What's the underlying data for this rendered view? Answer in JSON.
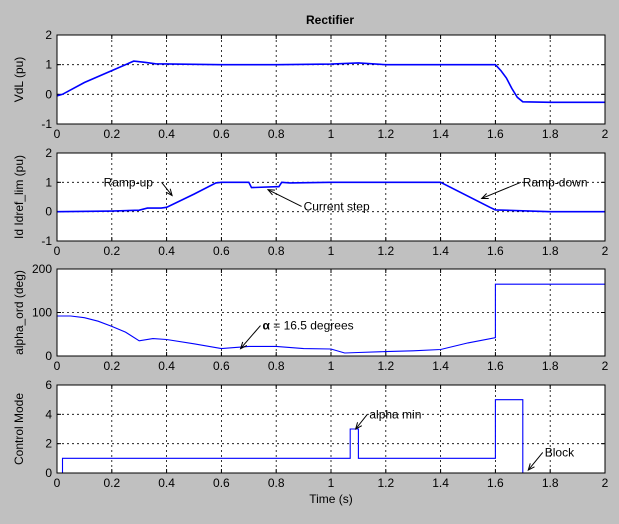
{
  "chart_data": [
    {
      "type": "line",
      "title": "Rectifier",
      "ylabel": "VdL (pu)",
      "xlabel": "",
      "xlim": [
        0,
        2
      ],
      "ylim": [
        -1,
        2
      ],
      "xticks": [
        "0",
        "0.2",
        "0.4",
        "0.6",
        "0.8",
        "1",
        "1.2",
        "1.4",
        "1.6",
        "1.8",
        "2"
      ],
      "yticks": [
        "-1",
        "0",
        "1",
        "2"
      ],
      "grid": true,
      "line_color": "#0000ff",
      "series": [
        {
          "x": [
            0,
            0.02,
            0.1,
            0.2,
            0.28,
            0.32,
            0.36,
            0.6,
            0.8,
            1.0,
            1.1,
            1.2,
            1.4,
            1.6,
            1.62,
            1.64,
            1.66,
            1.68,
            1.7,
            1.8,
            2.0
          ],
          "y": [
            -0.05,
            0.0,
            0.4,
            0.8,
            1.12,
            1.08,
            1.03,
            1.0,
            1.0,
            1.02,
            1.06,
            1.0,
            1.0,
            1.0,
            0.8,
            0.55,
            0.2,
            -0.1,
            -0.25,
            -0.27,
            -0.27
          ]
        }
      ],
      "annotations": []
    },
    {
      "type": "line",
      "title": "",
      "ylabel": "Id Idref_lim (pu)",
      "xlabel": "",
      "xlim": [
        0,
        2
      ],
      "ylim": [
        -1,
        2
      ],
      "xticks": [
        "0",
        "0.2",
        "0.4",
        "0.6",
        "0.8",
        "1",
        "1.2",
        "1.4",
        "1.6",
        "1.8",
        "2"
      ],
      "yticks": [
        "-1",
        "0",
        "1",
        "2"
      ],
      "grid": true,
      "line_color": "#0000ff",
      "series": [
        {
          "x": [
            0,
            0.2,
            0.3,
            0.33,
            0.38,
            0.4,
            0.5,
            0.58,
            0.6,
            0.7,
            0.71,
            0.8,
            0.81,
            0.82,
            0.85,
            1.0,
            1.4,
            1.58,
            1.6,
            1.7,
            1.8,
            2.0
          ],
          "y": [
            0.0,
            0.02,
            0.05,
            0.12,
            0.12,
            0.15,
            0.6,
            0.98,
            1.0,
            1.0,
            0.82,
            0.85,
            0.85,
            1.0,
            0.98,
            1.0,
            1.0,
            0.15,
            0.06,
            0.03,
            0.0,
            0.0
          ]
        }
      ],
      "annotations": [
        {
          "text": "Ramp-up",
          "tx": 0.17,
          "ty": 1.0,
          "px": 0.42,
          "py": 0.55
        },
        {
          "text": "Current step",
          "tx": 0.9,
          "ty": 0.18,
          "px": 0.77,
          "py": 0.75
        },
        {
          "text": "Ramp-down",
          "tx": 1.7,
          "ty": 1.0,
          "px": 1.55,
          "py": 0.45
        }
      ]
    },
    {
      "type": "line",
      "title": "",
      "ylabel": "alpha_ord (deg)",
      "xlabel": "",
      "xlim": [
        0,
        2
      ],
      "ylim": [
        0,
        200
      ],
      "xticks": [
        "0",
        "0.2",
        "0.4",
        "0.6",
        "0.8",
        "1",
        "1.2",
        "1.4",
        "1.6",
        "1.8",
        "2"
      ],
      "yticks": [
        "0",
        "100",
        "200"
      ],
      "grid": true,
      "line_color": "#0000ff",
      "series": [
        {
          "x": [
            0,
            0.05,
            0.1,
            0.15,
            0.2,
            0.25,
            0.3,
            0.35,
            0.4,
            0.5,
            0.6,
            0.7,
            0.8,
            0.9,
            1.0,
            1.05,
            1.1,
            1.2,
            1.3,
            1.4,
            1.5,
            1.6,
            1.6,
            2.0
          ],
          "y": [
            92,
            92,
            88,
            80,
            68,
            55,
            35,
            40,
            38,
            28,
            17,
            22,
            22,
            17,
            16,
            7,
            8,
            10,
            12,
            15,
            30,
            42,
            165,
            165
          ]
        }
      ],
      "annotations": [
        {
          "text": " = 16.5 degrees",
          "symbol": "α",
          "tx": 0.75,
          "ty": 70,
          "px": 0.67,
          "py": 17
        }
      ]
    },
    {
      "type": "line",
      "title": "",
      "ylabel": "Control Mode",
      "xlabel": "Time (s)",
      "xlim": [
        0,
        2
      ],
      "ylim": [
        0,
        6
      ],
      "xticks": [
        "0",
        "0.2",
        "0.4",
        "0.6",
        "0.8",
        "1",
        "1.2",
        "1.4",
        "1.6",
        "1.8",
        "2"
      ],
      "yticks": [
        "0",
        "2",
        "4",
        "6"
      ],
      "grid": true,
      "line_color": "#0000ff",
      "series": [
        {
          "x": [
            0,
            0.02,
            0.02,
            1.07,
            1.07,
            1.1,
            1.1,
            1.6,
            1.6,
            1.7,
            1.7,
            2.0
          ],
          "y": [
            0,
            0,
            1,
            1,
            3,
            3,
            1,
            1,
            5,
            5,
            0,
            0
          ]
        }
      ],
      "annotations": [
        {
          "text": "alpha min",
          "tx": 1.14,
          "ty": 4.0,
          "px": 1.09,
          "py": 3.0
        },
        {
          "text": "Block",
          "tx": 1.78,
          "ty": 1.4,
          "px": 1.72,
          "py": 0.2
        }
      ]
    }
  ]
}
